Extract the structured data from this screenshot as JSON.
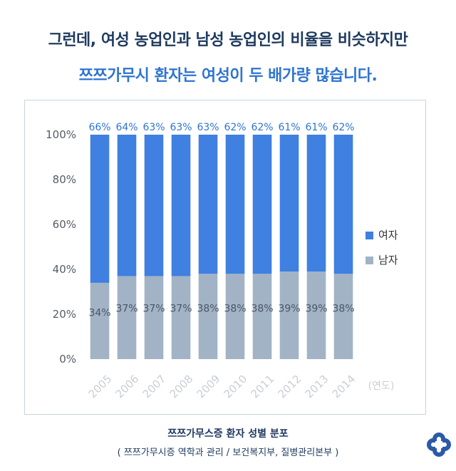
{
  "headline": {
    "line1": "그런데, 여성 농업인과 남성 농업인의 비율을 비슷하지만",
    "line2": "쯔쯔가무시 환자는 여성이 두 배가량 많습니다."
  },
  "chart_data": {
    "type": "bar",
    "stacked": true,
    "categories": [
      "2005",
      "2006",
      "2007",
      "2008",
      "2009",
      "2010",
      "2011",
      "2012",
      "2013",
      "2014"
    ],
    "series": [
      {
        "name": "여자",
        "color": "#3f80e0",
        "values": [
          66,
          64,
          63,
          63,
          63,
          62,
          62,
          61,
          61,
          62
        ]
      },
      {
        "name": "남자",
        "color": "#a3b3c6",
        "values": [
          34,
          37,
          37,
          37,
          38,
          38,
          38,
          39,
          39,
          38
        ]
      }
    ],
    "series_labels": {
      "여자": [
        "66%",
        "64%",
        "63%",
        "63%",
        "63%",
        "62%",
        "62%",
        "61%",
        "61%",
        "62%"
      ],
      "남자": [
        "34%",
        "37%",
        "37%",
        "37%",
        "38%",
        "38%",
        "38%",
        "39%",
        "39%",
        "38%"
      ]
    },
    "y_ticks": [
      0,
      20,
      40,
      60,
      80,
      100
    ],
    "y_tick_labels": [
      "0%",
      "20%",
      "40%",
      "60%",
      "80%",
      "100%"
    ],
    "ylim": [
      0,
      100
    ],
    "x_unit_label": "(연도)",
    "legend": "right"
  },
  "footer": {
    "title": "쯔쯔가무스증 환자 성별 분포",
    "source": "( 쯔쯔가무시증 역학과 관리 / 보건복지부, 질병관리본부 )"
  }
}
